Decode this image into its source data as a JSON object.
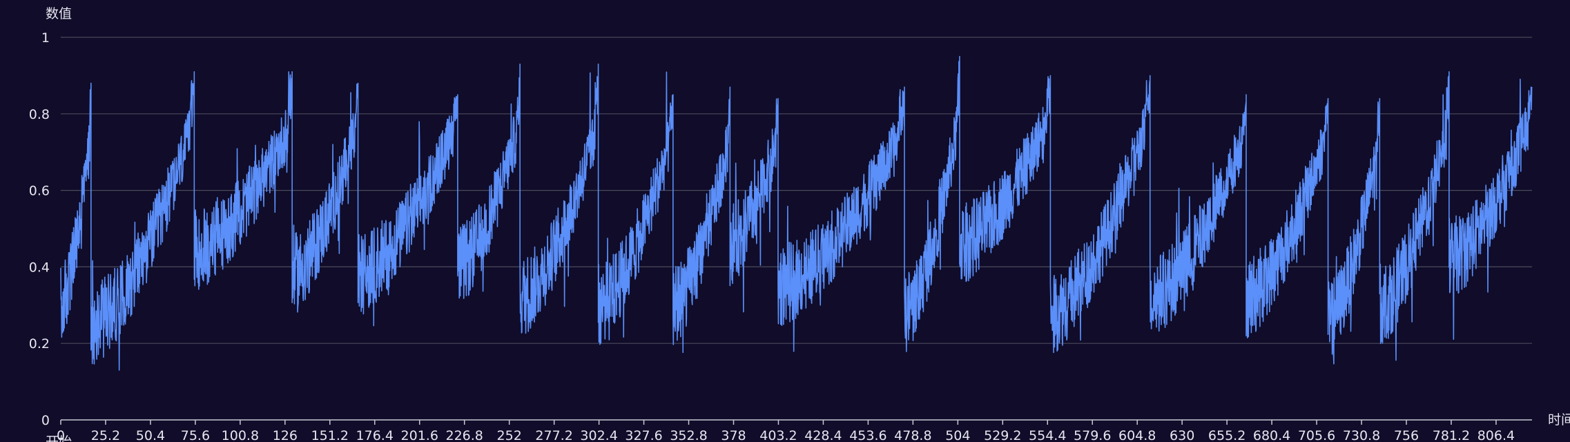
{
  "chart_data": {
    "type": "line",
    "title": "",
    "xlabel": "时间",
    "ylabel": "数值",
    "extra_label": "开始",
    "ylim": [
      0,
      1
    ],
    "y_ticks": [
      0,
      0.2,
      0.4,
      0.6,
      0.8,
      1
    ],
    "xlim": [
      0,
      826.6
    ],
    "x_ticks": [
      0,
      25.2,
      50.4,
      75.6,
      100.8,
      126,
      151.2,
      176.4,
      201.6,
      226.8,
      252,
      277.2,
      302.4,
      327.6,
      352.8,
      378,
      403.2,
      428.4,
      453.6,
      478.8,
      504,
      529.2,
      554.4,
      579.6,
      604.8,
      630,
      655.2,
      680.4,
      705.6,
      730.8,
      756,
      781.2,
      806.4
    ],
    "grid": true,
    "legend": "none",
    "line_color": "#5b8ff9",
    "background": "#100c29",
    "grid_color": "#4a4a5c",
    "cycles": [
      {
        "start": 0,
        "end": 17,
        "from": 0.3,
        "to": 0.76,
        "peak": 0.88
      },
      {
        "start": 17,
        "end": 75,
        "from": 0.25,
        "to": 0.78,
        "peak": 0.91
      },
      {
        "start": 75,
        "end": 130,
        "from": 0.44,
        "to": 0.78,
        "peak": 0.91
      },
      {
        "start": 130,
        "end": 167,
        "from": 0.38,
        "to": 0.78,
        "peak": 0.88
      },
      {
        "start": 167,
        "end": 223,
        "from": 0.38,
        "to": 0.78,
        "peak": 0.85
      },
      {
        "start": 223,
        "end": 258,
        "from": 0.4,
        "to": 0.78,
        "peak": 0.93
      },
      {
        "start": 258,
        "end": 302,
        "from": 0.32,
        "to": 0.78,
        "peak": 0.93
      },
      {
        "start": 302,
        "end": 344,
        "from": 0.3,
        "to": 0.76,
        "peak": 0.85
      },
      {
        "start": 344,
        "end": 376,
        "from": 0.3,
        "to": 0.74,
        "peak": 0.87
      },
      {
        "start": 376,
        "end": 403,
        "from": 0.46,
        "to": 0.74,
        "peak": 0.84
      },
      {
        "start": 403,
        "end": 474,
        "from": 0.35,
        "to": 0.76,
        "peak": 0.87
      },
      {
        "start": 474,
        "end": 505,
        "from": 0.28,
        "to": 0.8,
        "peak": 0.95
      },
      {
        "start": 505,
        "end": 556,
        "from": 0.46,
        "to": 0.8,
        "peak": 0.9
      },
      {
        "start": 556,
        "end": 612,
        "from": 0.28,
        "to": 0.8,
        "peak": 0.9
      },
      {
        "start": 612,
        "end": 666,
        "from": 0.32,
        "to": 0.76,
        "peak": 0.85
      },
      {
        "start": 666,
        "end": 712,
        "from": 0.32,
        "to": 0.76,
        "peak": 0.84
      },
      {
        "start": 712,
        "end": 741,
        "from": 0.26,
        "to": 0.74,
        "peak": 0.84
      },
      {
        "start": 741,
        "end": 780,
        "from": 0.3,
        "to": 0.78,
        "peak": 0.91
      },
      {
        "start": 780,
        "end": 826.6,
        "from": 0.42,
        "to": 0.8,
        "peak": 0.87
      }
    ]
  }
}
